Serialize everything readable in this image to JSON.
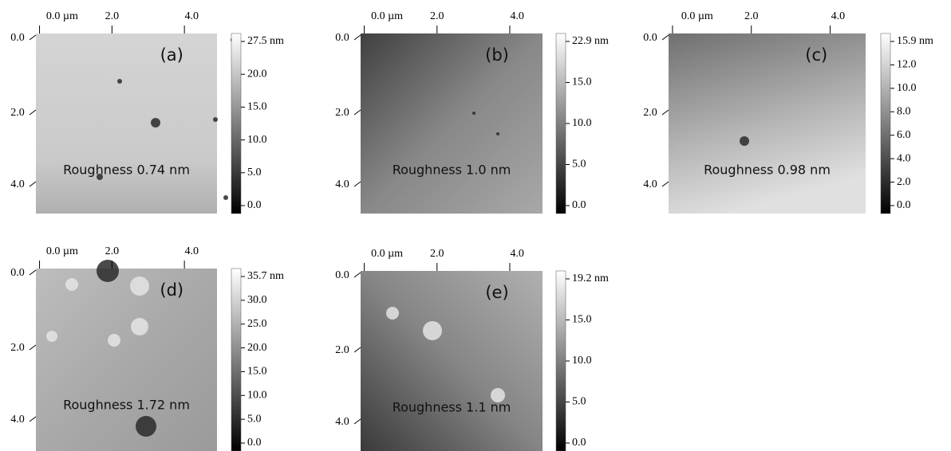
{
  "panels": [
    {
      "label": "(a)",
      "roughness": "Roughness 0.74 nm",
      "xticks": [
        "0.0 µm",
        "2.0",
        "4.0"
      ],
      "yticks": [
        "0.0",
        "2.0",
        "4.0"
      ],
      "colorbar": [
        "27.5 nm",
        "20.0",
        "15.0",
        "10.0",
        "5.0",
        "0.0"
      ]
    },
    {
      "label": "(b)",
      "roughness": "Roughness 1.0 nm",
      "xticks": [
        "0.0 µm",
        "2.0",
        "4.0"
      ],
      "yticks": [
        "0.0",
        "2.0",
        "4.0"
      ],
      "colorbar": [
        "22.9 nm",
        "15.0",
        "10.0",
        "5.0",
        "0.0"
      ]
    },
    {
      "label": "(c)",
      "roughness": "Roughness 0.98 nm",
      "xticks": [
        "0.0 µm",
        "2.0",
        "4.0"
      ],
      "yticks": [
        "0.0",
        "2.0",
        "4.0"
      ],
      "colorbar": [
        "15.9 nm",
        "12.0",
        "10.0",
        "8.0",
        "6.0",
        "4.0",
        "2.0",
        "0.0"
      ]
    },
    {
      "label": "(d)",
      "roughness": "Roughness 1.72 nm",
      "xticks": [
        "0.0 µm",
        "2.0",
        "4.0"
      ],
      "yticks": [
        "0.0",
        "2.0",
        "4.0"
      ],
      "colorbar": [
        "35.7 nm",
        "30.0",
        "25.0",
        "20.0",
        "15.0",
        "10.0",
        "5.0",
        "0.0"
      ]
    },
    {
      "label": "(e)",
      "roughness": "Roughness 1.1 nm",
      "xticks": [
        "0.0 µm",
        "2.0",
        "4.0"
      ],
      "yticks": [
        "0.0",
        "2.0",
        "4.0"
      ],
      "colorbar": [
        "19.2 nm",
        "15.0",
        "10.0",
        "5.0",
        "0.0"
      ]
    }
  ]
}
